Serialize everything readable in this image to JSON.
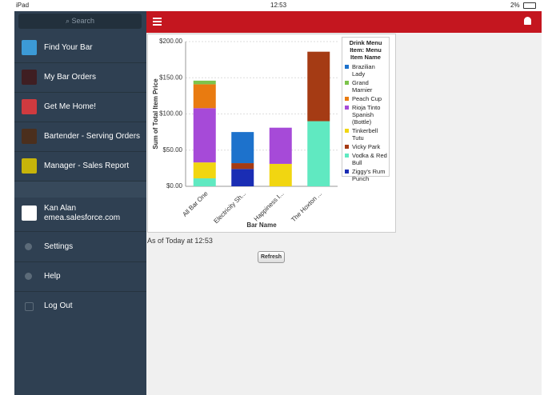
{
  "status_bar": {
    "device": "iPad",
    "time": "12:53",
    "battery": "2%"
  },
  "sidebar": {
    "search_placeholder": "Search",
    "menu": [
      "Find Your Bar",
      "My Bar Orders",
      "Get Me Home!",
      "Bartender - Serving Orders",
      "Manager - Sales Report"
    ],
    "user": {
      "name": "Kan Alan",
      "org": "emea.salesforce.com"
    },
    "footer_menu": [
      "Settings",
      "Help",
      "Log Out"
    ]
  },
  "report": {
    "timestamp": "As of Today at 12:53",
    "refresh_button": "Refresh"
  },
  "chart_data": {
    "type": "bar",
    "stacked": true,
    "x_label": "Bar Name",
    "y_label": "Sum of Total Item Price",
    "legend_title": "Drink Menu Item: Menu Item Name",
    "categories": [
      "All Bar One",
      "Electricity Sh...",
      "Happiness I...",
      "The Hoxton ..."
    ],
    "series": [
      {
        "name": "Brazilian Lady",
        "color": "#1d72cc",
        "values": [
          null,
          43,
          null,
          null
        ]
      },
      {
        "name": "Grand Marnier",
        "color": "#7cc44b",
        "values": [
          5,
          null,
          null,
          null
        ]
      },
      {
        "name": "Peach Cup",
        "color": "#e97b10",
        "values": [
          33,
          null,
          null,
          null
        ]
      },
      {
        "name": "Rioja Tinto Spanish (Bottle)",
        "color": "#a64ad8",
        "values": [
          75,
          null,
          50,
          null
        ]
      },
      {
        "name": "Tinkerbell Tutu",
        "color": "#f1d611",
        "values": [
          22,
          null,
          31,
          null
        ]
      },
      {
        "name": "Vicky Park",
        "color": "#a53b14",
        "values": [
          null,
          8,
          null,
          96
        ]
      },
      {
        "name": "Vodka & Red Bull",
        "color": "#60e9c1",
        "values": [
          11,
          null,
          null,
          90
        ]
      },
      {
        "name": "Ziggy's Rum Punch",
        "color": "#1a2db4",
        "values": [
          null,
          24,
          null,
          null
        ]
      }
    ],
    "ylim": [
      0,
      200
    ],
    "yticks": [
      {
        "value": 0,
        "label": "$0.00"
      },
      {
        "value": 50,
        "label": "$50.00"
      },
      {
        "value": 100,
        "label": "$100.00"
      },
      {
        "value": 150,
        "label": "$150.00"
      },
      {
        "value": 200,
        "label": "$200.00"
      }
    ],
    "grid": true
  }
}
